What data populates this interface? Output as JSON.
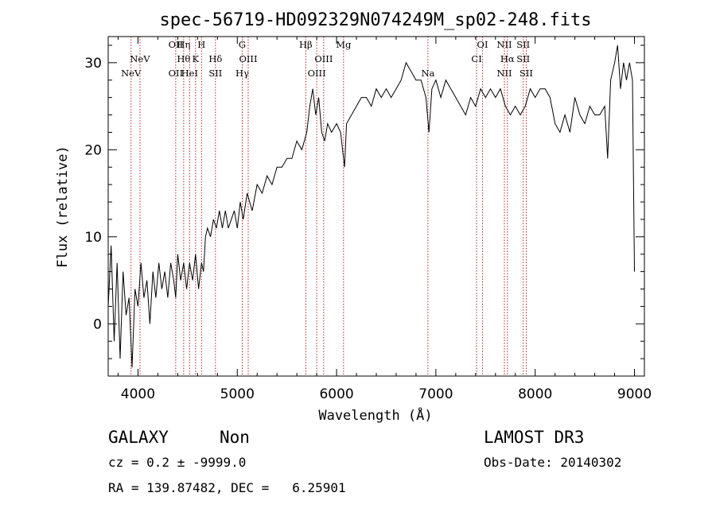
{
  "chart_data": {
    "type": "line",
    "title": "spec-56719-HD092329N074249M_sp02-248.fits",
    "xlabel": "Wavelength (Å)",
    "ylabel": "Flux (relative)",
    "xlim": [
      3700,
      9100
    ],
    "ylim": [
      -6,
      33
    ],
    "xticks": [
      4000,
      5000,
      6000,
      7000,
      8000,
      9000
    ],
    "yticks": [
      0,
      10,
      20,
      30
    ],
    "grid": false,
    "series": [
      {
        "values": [
          [
            3700,
            2
          ],
          [
            3730,
            9
          ],
          [
            3760,
            -2
          ],
          [
            3790,
            7
          ],
          [
            3820,
            -4
          ],
          [
            3850,
            6
          ],
          [
            3880,
            1
          ],
          [
            3910,
            3
          ],
          [
            3940,
            -5
          ],
          [
            3970,
            4
          ],
          [
            4000,
            2
          ],
          [
            4030,
            7
          ],
          [
            4060,
            3
          ],
          [
            4090,
            5
          ],
          [
            4120,
            0
          ],
          [
            4150,
            6
          ],
          [
            4180,
            3
          ],
          [
            4210,
            7
          ],
          [
            4240,
            4
          ],
          [
            4270,
            6
          ],
          [
            4300,
            3
          ],
          [
            4330,
            7
          ],
          [
            4360,
            5
          ],
          [
            4380,
            3
          ],
          [
            4400,
            8
          ],
          [
            4430,
            5
          ],
          [
            4460,
            7
          ],
          [
            4490,
            4
          ],
          [
            4520,
            7
          ],
          [
            4550,
            5
          ],
          [
            4580,
            8
          ],
          [
            4610,
            4
          ],
          [
            4640,
            7
          ],
          [
            4660,
            6
          ],
          [
            4680,
            10
          ],
          [
            4700,
            11
          ],
          [
            4730,
            10
          ],
          [
            4760,
            12
          ],
          [
            4790,
            11
          ],
          [
            4820,
            13
          ],
          [
            4850,
            11
          ],
          [
            4880,
            13
          ],
          [
            4910,
            11
          ],
          [
            4940,
            12
          ],
          [
            4970,
            13
          ],
          [
            5000,
            11
          ],
          [
            5030,
            14
          ],
          [
            5060,
            12
          ],
          [
            5100,
            15
          ],
          [
            5150,
            13
          ],
          [
            5200,
            16
          ],
          [
            5250,
            15
          ],
          [
            5300,
            17
          ],
          [
            5350,
            16
          ],
          [
            5400,
            18
          ],
          [
            5450,
            18
          ],
          [
            5500,
            19
          ],
          [
            5550,
            19
          ],
          [
            5600,
            21
          ],
          [
            5650,
            20
          ],
          [
            5700,
            22
          ],
          [
            5730,
            25
          ],
          [
            5760,
            27
          ],
          [
            5790,
            24
          ],
          [
            5820,
            26
          ],
          [
            5850,
            22
          ],
          [
            5880,
            21
          ],
          [
            5910,
            23
          ],
          [
            5950,
            22
          ],
          [
            6000,
            23
          ],
          [
            6040,
            22
          ],
          [
            6080,
            18
          ],
          [
            6100,
            23
          ],
          [
            6150,
            24
          ],
          [
            6200,
            25
          ],
          [
            6250,
            26
          ],
          [
            6300,
            26
          ],
          [
            6350,
            25
          ],
          [
            6400,
            27
          ],
          [
            6450,
            26
          ],
          [
            6500,
            27
          ],
          [
            6550,
            26
          ],
          [
            6600,
            27
          ],
          [
            6650,
            28
          ],
          [
            6700,
            30
          ],
          [
            6750,
            29
          ],
          [
            6800,
            28
          ],
          [
            6850,
            28
          ],
          [
            6900,
            26
          ],
          [
            6930,
            22
          ],
          [
            6960,
            27
          ],
          [
            7000,
            28
          ],
          [
            7050,
            26
          ],
          [
            7100,
            28
          ],
          [
            7150,
            27
          ],
          [
            7200,
            26
          ],
          [
            7250,
            25
          ],
          [
            7300,
            24
          ],
          [
            7350,
            26
          ],
          [
            7400,
            25
          ],
          [
            7450,
            27
          ],
          [
            7500,
            26
          ],
          [
            7550,
            27
          ],
          [
            7600,
            26
          ],
          [
            7650,
            27
          ],
          [
            7700,
            25
          ],
          [
            7750,
            24
          ],
          [
            7800,
            25
          ],
          [
            7850,
            24
          ],
          [
            7900,
            25
          ],
          [
            7950,
            27
          ],
          [
            8000,
            26
          ],
          [
            8050,
            27
          ],
          [
            8100,
            27
          ],
          [
            8150,
            26
          ],
          [
            8200,
            23
          ],
          [
            8250,
            22
          ],
          [
            8300,
            24
          ],
          [
            8350,
            22
          ],
          [
            8400,
            26
          ],
          [
            8450,
            24
          ],
          [
            8500,
            23
          ],
          [
            8550,
            25
          ],
          [
            8600,
            24
          ],
          [
            8650,
            24
          ],
          [
            8700,
            25
          ],
          [
            8730,
            19
          ],
          [
            8760,
            28
          ],
          [
            8800,
            30
          ],
          [
            8830,
            32
          ],
          [
            8860,
            27
          ],
          [
            8890,
            30
          ],
          [
            8920,
            28
          ],
          [
            8950,
            30
          ],
          [
            8980,
            28
          ],
          [
            9000,
            6
          ]
        ]
      }
    ],
    "line_color": "#000000",
    "marker_color": "#b22222",
    "markers": [
      {
        "x": 3930,
        "rows": [
          {
            "text": "NeV",
            "row": 2
          }
        ]
      },
      {
        "x": 4020,
        "rows": [
          {
            "text": "NeV",
            "row": 1
          }
        ]
      },
      {
        "x": 4380,
        "rows": [
          {
            "text": "OII",
            "row": 0
          },
          {
            "text": "OII",
            "row": 2
          }
        ]
      },
      {
        "x": 4460,
        "rows": [
          {
            "text": "Hη",
            "row": 0
          },
          {
            "text": "Hθ",
            "row": 1
          }
        ]
      },
      {
        "x": 4520,
        "rows": [
          {
            "text": "HeI",
            "row": 2
          }
        ]
      },
      {
        "x": 4580,
        "rows": [
          {
            "text": "K",
            "row": 1
          }
        ]
      },
      {
        "x": 4640,
        "rows": [
          {
            "text": "H",
            "row": 0
          }
        ]
      },
      {
        "x": 4780,
        "rows": [
          {
            "text": "Hδ",
            "row": 1
          },
          {
            "text": "SII",
            "row": 2
          }
        ]
      },
      {
        "x": 5050,
        "rows": [
          {
            "text": "G",
            "row": 0
          },
          {
            "text": "Hγ",
            "row": 2
          }
        ]
      },
      {
        "x": 5110,
        "rows": [
          {
            "text": "OIII",
            "row": 1
          }
        ]
      },
      {
        "x": 5690,
        "rows": [
          {
            "text": "Hβ",
            "row": 0
          }
        ]
      },
      {
        "x": 5800,
        "rows": [
          {
            "text": "OIII",
            "row": 2
          }
        ]
      },
      {
        "x": 5870,
        "rows": [
          {
            "text": "OIII",
            "row": 1
          }
        ]
      },
      {
        "x": 6070,
        "rows": [
          {
            "text": "Mg",
            "row": 0
          }
        ]
      },
      {
        "x": 6920,
        "rows": [
          {
            "text": "Na",
            "row": 2
          }
        ]
      },
      {
        "x": 7410,
        "rows": [
          {
            "text": "CI",
            "row": 1
          }
        ]
      },
      {
        "x": 7470,
        "rows": [
          {
            "text": "OI",
            "row": 0
          }
        ]
      },
      {
        "x": 7690,
        "rows": [
          {
            "text": "NII",
            "row": 0
          },
          {
            "text": "NII",
            "row": 2
          }
        ]
      },
      {
        "x": 7720,
        "rows": [
          {
            "text": "Hα",
            "row": 1
          }
        ]
      },
      {
        "x": 7880,
        "rows": [
          {
            "text": "SII",
            "row": 0
          },
          {
            "text": "SII",
            "row": 1
          }
        ]
      },
      {
        "x": 7910,
        "rows": [
          {
            "text": "SII",
            "row": 2
          }
        ]
      }
    ]
  },
  "info": {
    "object_class": "GALAXY",
    "subclass": "Non",
    "survey": "LAMOST DR3",
    "cz": "cz = 0.2 ± -9999.0",
    "obs_date": "Obs-Date: 20140302",
    "coords": "RA = 139.87482, DEC =   6.25901"
  }
}
